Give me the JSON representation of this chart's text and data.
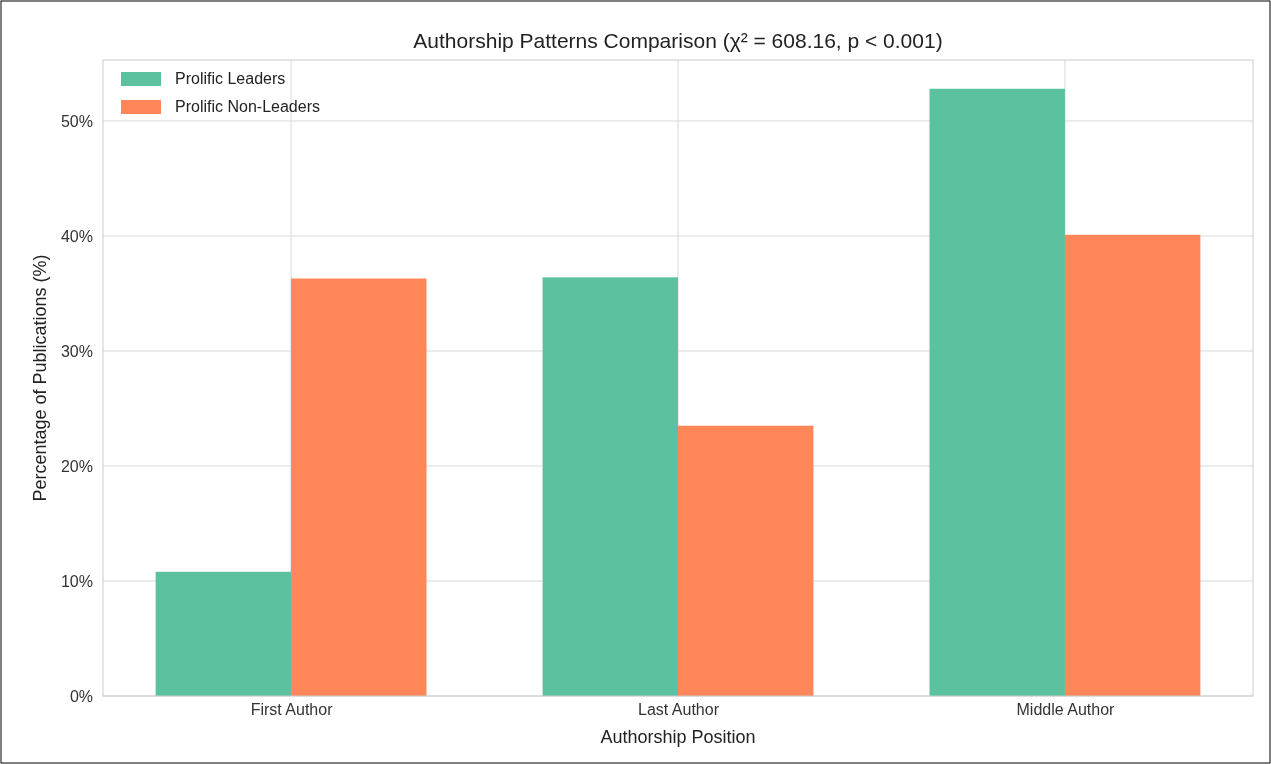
{
  "chart_data": {
    "type": "bar",
    "title": "Authorship Patterns Comparison (χ² = 608.16, p < 0.001)",
    "xlabel": "Authorship Position",
    "ylabel": "Percentage of Publications (%)",
    "categories": [
      "First Author",
      "Last Author",
      "Middle Author"
    ],
    "series": [
      {
        "name": "Prolific Leaders",
        "color": "#5cc19e",
        "values": [
          10.8,
          36.4,
          52.8
        ]
      },
      {
        "name": "Prolific Non-Leaders",
        "color": "#fe8659",
        "values": [
          36.3,
          23.5,
          40.1
        ]
      }
    ],
    "ylim": [
      0,
      55.3
    ],
    "yticks": [
      {
        "value": 0,
        "label": "0%"
      },
      {
        "value": 10,
        "label": "10%"
      },
      {
        "value": 20,
        "label": "20%"
      },
      {
        "value": 30,
        "label": "30%"
      },
      {
        "value": 40,
        "label": "40%"
      },
      {
        "value": 50,
        "label": "50%"
      }
    ],
    "grid": true,
    "legend": "top left"
  }
}
